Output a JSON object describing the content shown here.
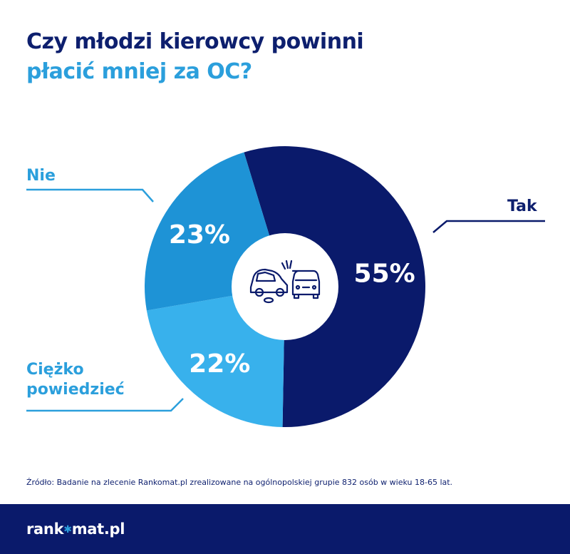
{
  "title": {
    "line1": "Czy młodzi kierowcy powinni",
    "line2": "płacić mniej za OC?"
  },
  "chart_data": {
    "type": "pie",
    "style": "donut",
    "categories": [
      "Tak",
      "Ciężko powiedzieć",
      "Nie"
    ],
    "values": [
      55,
      22,
      23
    ],
    "value_labels": [
      "55%",
      "22%",
      "23%"
    ],
    "colors": [
      "#0a1a6b",
      "#38b1ec",
      "#1e93d6"
    ],
    "center_icon": "car-crash-icon"
  },
  "labels": {
    "tak": "Tak",
    "nie": "Nie",
    "ciezko_line1": "Ciężko",
    "ciezko_line2": "powiedzieć"
  },
  "source": "Źródło: Badanie na zlecenie Rankomat.pl zrealizowane na ogólnopolskiej grupie 832 osób w wieku 18-65 lat.",
  "footer": {
    "logo_part1": "rank",
    "logo_part2": "mat.pl",
    "logo_icon": "star-icon"
  },
  "colors": {
    "dark_navy": "#0a1a6b",
    "accent_blue": "#2b9fdc"
  }
}
